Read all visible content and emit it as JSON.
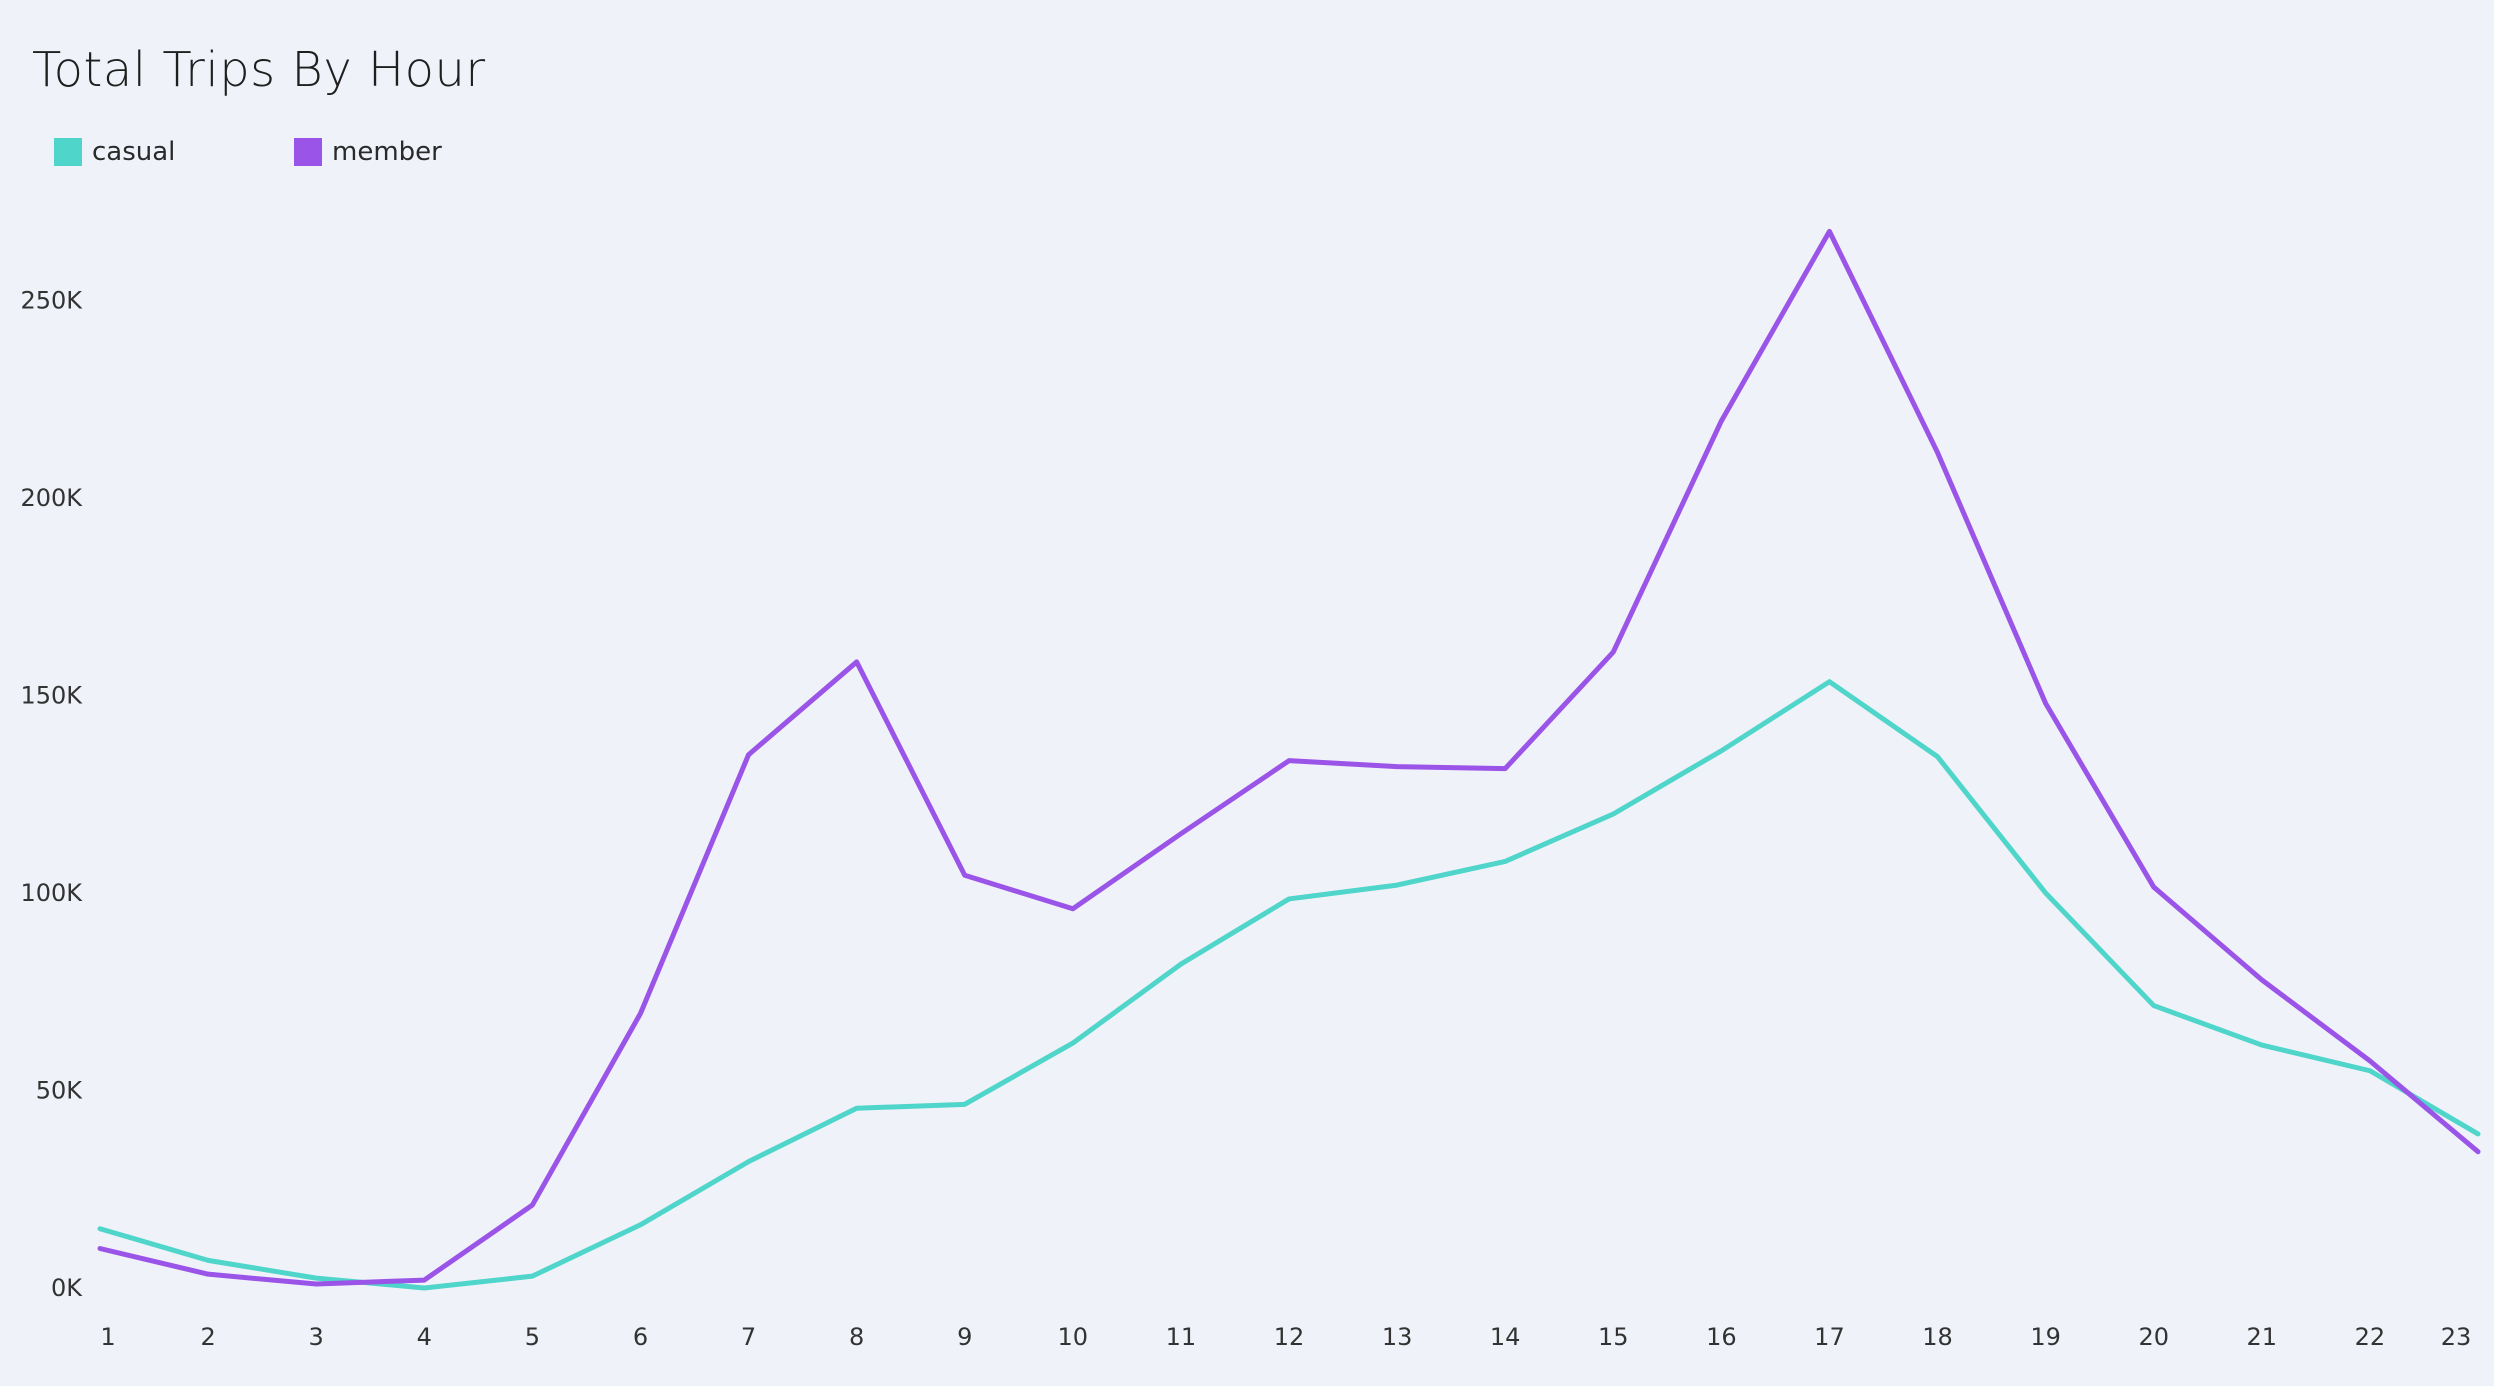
{
  "chart_data": {
    "type": "line",
    "title": "Total Trips By Hour",
    "xlabel": "",
    "ylabel": "",
    "categories": [
      "1",
      "2",
      "3",
      "4",
      "5",
      "6",
      "7",
      "8",
      "9",
      "10",
      "11",
      "12",
      "13",
      "14",
      "15",
      "16",
      "17",
      "18",
      "19",
      "20",
      "21",
      "22",
      "23"
    ],
    "y_ticks": [
      {
        "value": 0,
        "label": "0K"
      },
      {
        "value": 50000,
        "label": "50K"
      },
      {
        "value": 100000,
        "label": "100K"
      },
      {
        "value": 150000,
        "label": "150K"
      },
      {
        "value": 200000,
        "label": "200K"
      },
      {
        "value": 250000,
        "label": "250K"
      }
    ],
    "ylim": [
      0,
      280000
    ],
    "grid": false,
    "legend_position": "top-left",
    "series": [
      {
        "name": "casual",
        "color": "#4fd5c9",
        "values": [
          15000,
          7000,
          2500,
          0,
          3000,
          16000,
          32000,
          45500,
          46500,
          62000,
          82000,
          98500,
          102000,
          108000,
          120000,
          136000,
          153500,
          134500,
          100000,
          71500,
          61500,
          55000,
          39000
        ]
      },
      {
        "name": "member",
        "color": "#9b54e8",
        "values": [
          10000,
          3500,
          1000,
          2000,
          21000,
          69500,
          135000,
          158500,
          104500,
          96000,
          115000,
          133500,
          132000,
          131500,
          161000,
          219500,
          267500,
          211500,
          148000,
          101500,
          78000,
          57500,
          34500
        ]
      }
    ]
  }
}
